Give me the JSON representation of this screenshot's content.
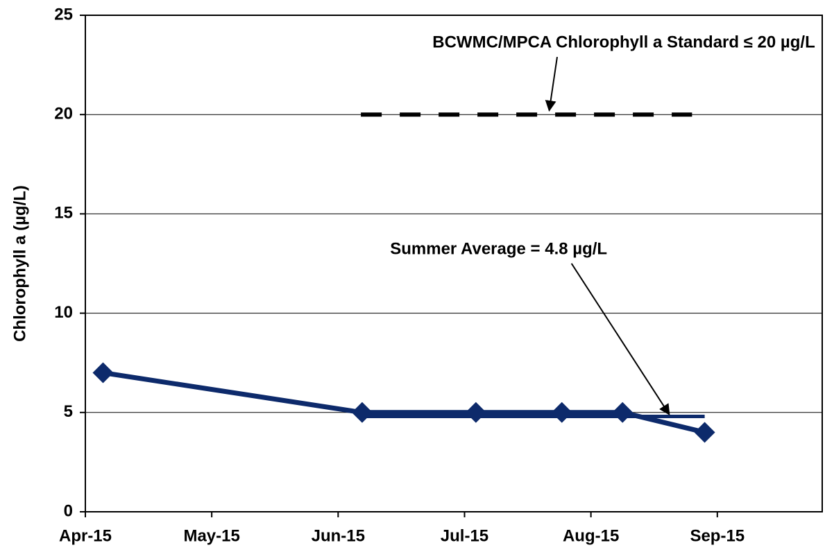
{
  "chart_data": {
    "type": "line",
    "y_label": "Chlorophyll a (µg/L)",
    "xlim": [
      0,
      5.83
    ],
    "xticks": [
      {
        "value": 0,
        "label": "Apr-15"
      },
      {
        "value": 1,
        "label": "May-15"
      },
      {
        "value": 2,
        "label": "Jun-15"
      },
      {
        "value": 3,
        "label": "Jul-15"
      },
      {
        "value": 4,
        "label": "Aug-15"
      },
      {
        "value": 5,
        "label": "Sep-15"
      }
    ],
    "ylim": [
      0,
      25
    ],
    "yticks": [
      0,
      5,
      10,
      15,
      20,
      25
    ],
    "grid": true,
    "series": [
      {
        "color": "#0d2a6b",
        "marker": "diamond",
        "x": [
          0.14,
          2.19,
          3.09,
          3.77,
          4.25,
          4.9
        ],
        "values": [
          7,
          5,
          5,
          5,
          5,
          4
        ]
      },
      {
        "color": "#0d2a6b",
        "x": [
          2.19,
          4.9
        ],
        "values": [
          4.8,
          4.8
        ]
      },
      {
        "color": "#000000",
        "dashed": true,
        "x": [
          2.18,
          4.8
        ],
        "values": [
          20,
          20
        ]
      }
    ],
    "annotations": [
      {
        "text": "BCWMC/MPCA Chlorophyll a Standard ≤ 20 µg/L",
        "x": 4.26,
        "y": 23.6,
        "arrow_x": 3.67,
        "arrow_y": 20.2
      },
      {
        "text": "Summer Average = 4.8 µg/L",
        "x": 3.27,
        "y": 13.2,
        "arrow_x": 4.62,
        "arrow_y": 4.9
      }
    ]
  }
}
